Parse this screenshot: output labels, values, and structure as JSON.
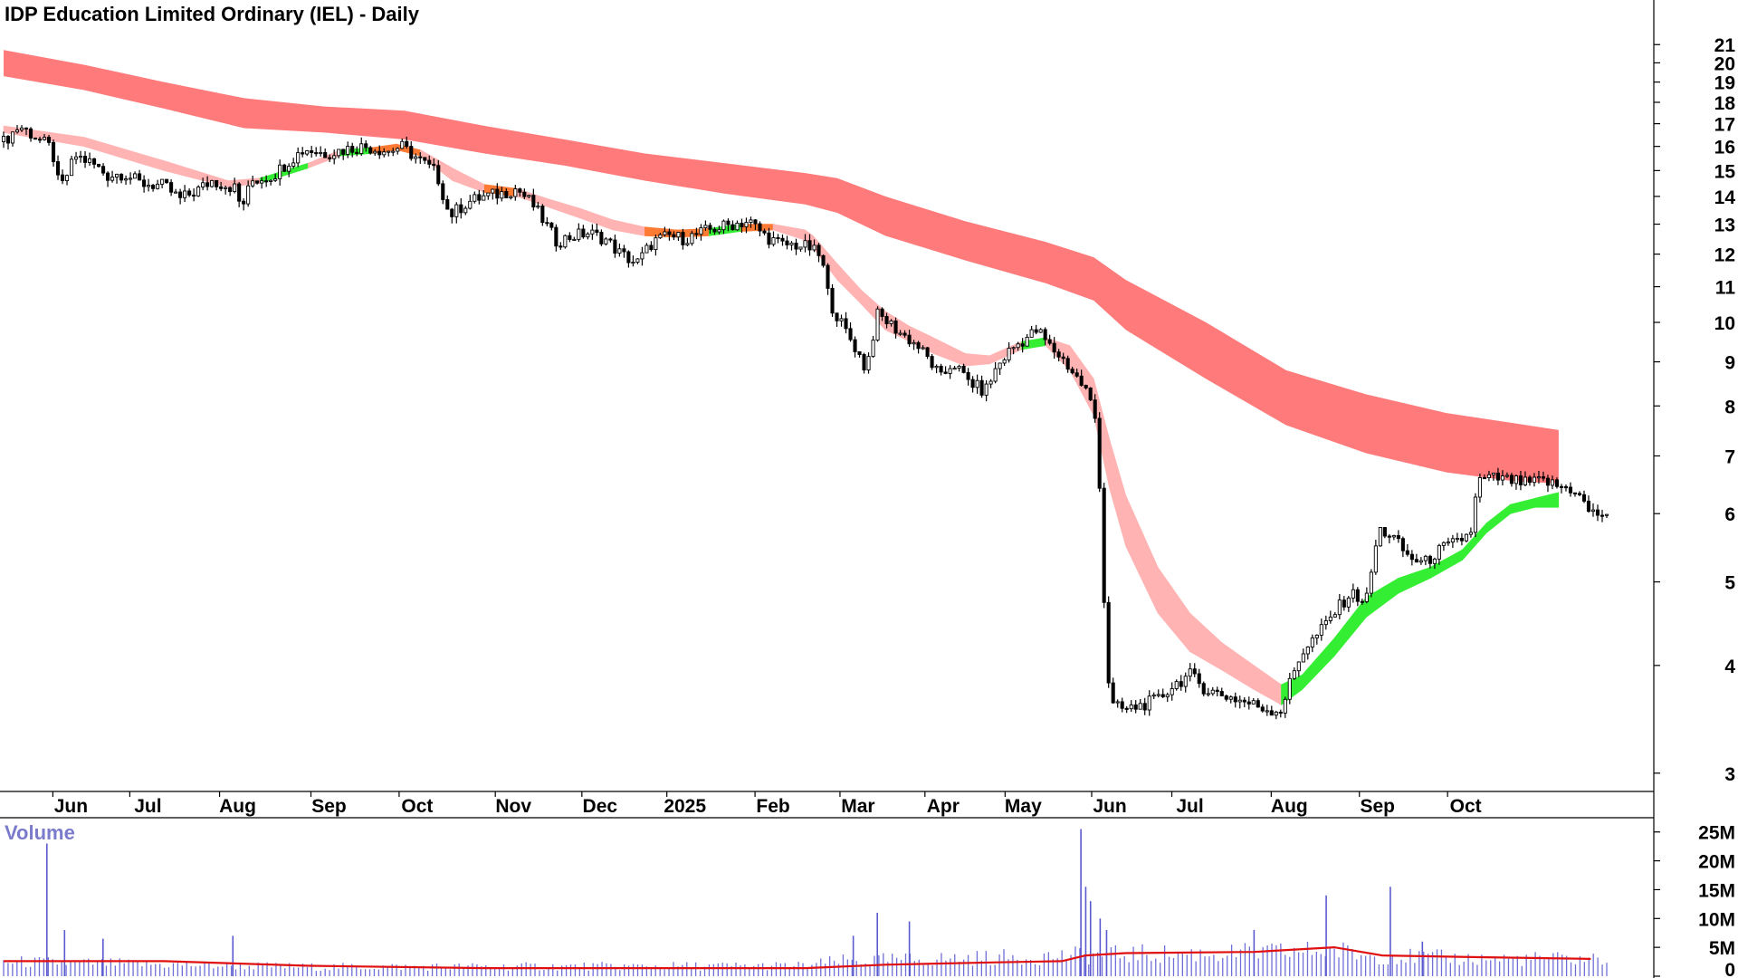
{
  "chart_data": {
    "type": "candlestick",
    "title": "IDP Education Limited Ordinary (IEL) - Daily",
    "y_scale": "log",
    "ylim": [
      2.85,
      22.0
    ],
    "price_ticks": [
      "21",
      "20",
      "19",
      "18",
      "17",
      "16",
      "15",
      "14",
      "13",
      "12",
      "11",
      "10",
      "9",
      "8",
      "7",
      "6",
      "5",
      "4",
      "3"
    ],
    "x_tick_labels": [
      "Jun",
      "Jul",
      "Aug",
      "Sep",
      "Oct",
      "Nov",
      "Dec",
      "2025",
      "Feb",
      "Mar",
      "Apr",
      "May",
      "Jun",
      "Jul",
      "Aug",
      "Sep",
      "Oct"
    ],
    "x_tick_positions": [
      0.042,
      0.09,
      0.146,
      0.203,
      0.258,
      0.318,
      0.372,
      0.425,
      0.48,
      0.533,
      0.586,
      0.636,
      0.69,
      0.74,
      0.802,
      0.857,
      0.912
    ],
    "price_path": [
      [
        0.0,
        16.2
      ],
      [
        0.01,
        16.9
      ],
      [
        0.02,
        16.4
      ],
      [
        0.03,
        15.9
      ],
      [
        0.035,
        14.2
      ],
      [
        0.045,
        15.6
      ],
      [
        0.055,
        15.3
      ],
      [
        0.065,
        14.8
      ],
      [
        0.075,
        14.9
      ],
      [
        0.085,
        14.5
      ],
      [
        0.1,
        14.4
      ],
      [
        0.11,
        13.9
      ],
      [
        0.12,
        14.2
      ],
      [
        0.13,
        14.6
      ],
      [
        0.145,
        14.3
      ],
      [
        0.148,
        13.5
      ],
      [
        0.155,
        14.6
      ],
      [
        0.168,
        14.8
      ],
      [
        0.178,
        15.4
      ],
      [
        0.188,
        15.9
      ],
      [
        0.2,
        15.7
      ],
      [
        0.215,
        15.9
      ],
      [
        0.225,
        16.0
      ],
      [
        0.24,
        15.8
      ],
      [
        0.248,
        16.0
      ],
      [
        0.26,
        15.4
      ],
      [
        0.27,
        14.9
      ],
      [
        0.278,
        13.3
      ],
      [
        0.29,
        13.8
      ],
      [
        0.3,
        14.0
      ],
      [
        0.31,
        14.1
      ],
      [
        0.32,
        14.3
      ],
      [
        0.33,
        13.7
      ],
      [
        0.345,
        12.4
      ],
      [
        0.355,
        12.6
      ],
      [
        0.365,
        12.7
      ],
      [
        0.375,
        12.5
      ],
      [
        0.385,
        12.0
      ],
      [
        0.395,
        11.7
      ],
      [
        0.405,
        12.4
      ],
      [
        0.415,
        12.6
      ],
      [
        0.425,
        12.5
      ],
      [
        0.44,
        12.8
      ],
      [
        0.455,
        13.0
      ],
      [
        0.465,
        13.1
      ],
      [
        0.475,
        12.6
      ],
      [
        0.485,
        12.3
      ],
      [
        0.495,
        12.3
      ],
      [
        0.503,
        12.2
      ],
      [
        0.51,
        11.9
      ],
      [
        0.515,
        10.6
      ],
      [
        0.522,
        10.0
      ],
      [
        0.532,
        9.3
      ],
      [
        0.538,
        8.8
      ],
      [
        0.545,
        10.2
      ],
      [
        0.552,
        10.0
      ],
      [
        0.56,
        9.7
      ],
      [
        0.57,
        9.4
      ],
      [
        0.578,
        9.0
      ],
      [
        0.585,
        8.6
      ],
      [
        0.592,
        9.0
      ],
      [
        0.6,
        8.6
      ],
      [
        0.612,
        8.3
      ],
      [
        0.62,
        8.9
      ],
      [
        0.628,
        9.3
      ],
      [
        0.638,
        9.6
      ],
      [
        0.645,
        9.8
      ],
      [
        0.652,
        9.4
      ],
      [
        0.66,
        9.1
      ],
      [
        0.67,
        8.6
      ],
      [
        0.676,
        8.3
      ],
      [
        0.682,
        7.6
      ],
      [
        0.686,
        4.9
      ],
      [
        0.69,
        3.6
      ],
      [
        0.7,
        3.55
      ],
      [
        0.71,
        3.6
      ],
      [
        0.72,
        3.65
      ],
      [
        0.73,
        3.8
      ],
      [
        0.74,
        3.9
      ],
      [
        0.75,
        3.75
      ],
      [
        0.76,
        3.7
      ],
      [
        0.77,
        3.65
      ],
      [
        0.78,
        3.6
      ],
      [
        0.79,
        3.55
      ],
      [
        0.797,
        3.55
      ],
      [
        0.803,
        3.85
      ],
      [
        0.81,
        4.15
      ],
      [
        0.82,
        4.35
      ],
      [
        0.83,
        4.6
      ],
      [
        0.84,
        4.85
      ],
      [
        0.85,
        4.75
      ],
      [
        0.858,
        5.75
      ],
      [
        0.866,
        5.65
      ],
      [
        0.876,
        5.35
      ],
      [
        0.886,
        5.25
      ],
      [
        0.896,
        5.45
      ],
      [
        0.906,
        5.55
      ],
      [
        0.915,
        5.7
      ],
      [
        0.92,
        6.55
      ],
      [
        0.93,
        6.6
      ],
      [
        0.94,
        6.55
      ],
      [
        0.95,
        6.5
      ],
      [
        0.96,
        6.55
      ],
      [
        0.97,
        6.45
      ],
      [
        0.98,
        6.4
      ],
      [
        0.99,
        6.0
      ]
    ],
    "short_ma_band": [
      [
        0.0,
        16.6,
        16.9
      ],
      [
        0.05,
        16.0,
        16.4
      ],
      [
        0.1,
        15.0,
        15.4
      ],
      [
        0.14,
        14.35,
        14.6
      ],
      [
        0.16,
        14.5,
        14.7
      ],
      [
        0.19,
        15.1,
        15.3
      ],
      [
        0.21,
        15.6,
        15.85
      ],
      [
        0.23,
        15.7,
        15.95
      ],
      [
        0.245,
        15.85,
        16.1
      ],
      [
        0.26,
        15.6,
        15.85
      ],
      [
        0.28,
        14.6,
        15.1
      ],
      [
        0.3,
        14.15,
        14.45
      ],
      [
        0.32,
        14.0,
        14.3
      ],
      [
        0.34,
        13.6,
        13.9
      ],
      [
        0.36,
        13.2,
        13.55
      ],
      [
        0.38,
        12.8,
        13.15
      ],
      [
        0.4,
        12.6,
        12.9
      ],
      [
        0.42,
        12.55,
        12.8
      ],
      [
        0.44,
        12.6,
        12.85
      ],
      [
        0.46,
        12.75,
        13.0
      ],
      [
        0.48,
        12.8,
        13.0
      ],
      [
        0.5,
        12.45,
        12.8
      ],
      [
        0.505,
        12.2,
        12.6
      ],
      [
        0.52,
        11.2,
        11.7
      ],
      [
        0.535,
        10.5,
        10.9
      ],
      [
        0.55,
        9.8,
        10.3
      ],
      [
        0.565,
        9.5,
        9.9
      ],
      [
        0.58,
        9.2,
        9.6
      ],
      [
        0.6,
        8.9,
        9.2
      ],
      [
        0.615,
        8.95,
        9.15
      ],
      [
        0.635,
        9.3,
        9.5
      ],
      [
        0.65,
        9.4,
        9.6
      ],
      [
        0.665,
        8.8,
        9.4
      ],
      [
        0.68,
        7.8,
        8.6
      ],
      [
        0.69,
        6.4,
        7.3
      ],
      [
        0.7,
        5.5,
        6.3
      ],
      [
        0.72,
        4.6,
        5.2
      ],
      [
        0.74,
        4.15,
        4.6
      ],
      [
        0.76,
        3.95,
        4.25
      ],
      [
        0.78,
        3.75,
        4.0
      ],
      [
        0.797,
        3.6,
        3.8
      ],
      [
        0.81,
        3.75,
        3.9
      ],
      [
        0.83,
        4.1,
        4.3
      ],
      [
        0.85,
        4.55,
        4.8
      ],
      [
        0.87,
        4.85,
        5.05
      ],
      [
        0.89,
        5.05,
        5.2
      ],
      [
        0.91,
        5.3,
        5.45
      ],
      [
        0.925,
        5.7,
        5.85
      ],
      [
        0.94,
        6.0,
        6.15
      ],
      [
        0.955,
        6.1,
        6.25
      ],
      [
        0.97,
        6.1,
        6.35
      ]
    ],
    "long_ma_band": [
      [
        0.0,
        19.3,
        20.7
      ],
      [
        0.05,
        18.6,
        19.9
      ],
      [
        0.1,
        17.7,
        19.0
      ],
      [
        0.15,
        16.8,
        18.2
      ],
      [
        0.2,
        16.6,
        17.8
      ],
      [
        0.25,
        16.3,
        17.6
      ],
      [
        0.3,
        15.7,
        16.9
      ],
      [
        0.35,
        15.2,
        16.3
      ],
      [
        0.4,
        14.6,
        15.7
      ],
      [
        0.45,
        14.1,
        15.3
      ],
      [
        0.5,
        13.7,
        14.9
      ],
      [
        0.52,
        13.4,
        14.7
      ],
      [
        0.55,
        12.6,
        14.0
      ],
      [
        0.6,
        11.8,
        13.1
      ],
      [
        0.65,
        11.1,
        12.4
      ],
      [
        0.68,
        10.6,
        11.9
      ],
      [
        0.7,
        9.8,
        11.2
      ],
      [
        0.75,
        8.6,
        10.0
      ],
      [
        0.8,
        7.6,
        8.8
      ],
      [
        0.85,
        7.05,
        8.25
      ],
      [
        0.9,
        6.7,
        7.85
      ],
      [
        0.94,
        6.55,
        7.65
      ],
      [
        0.97,
        6.5,
        7.5
      ]
    ],
    "volume": {
      "label": "Volume",
      "ticks": [
        "25M",
        "20M",
        "15M",
        "10M",
        "5M",
        "0"
      ],
      "ylim": [
        0,
        27
      ],
      "spikes": [
        [
          0.027,
          23
        ],
        [
          0.038,
          8
        ],
        [
          0.062,
          6.5
        ],
        [
          0.143,
          7
        ],
        [
          0.53,
          7
        ],
        [
          0.545,
          11
        ],
        [
          0.565,
          9.5
        ],
        [
          0.672,
          25.5
        ],
        [
          0.675,
          15.5
        ],
        [
          0.678,
          13
        ],
        [
          0.684,
          10
        ],
        [
          0.688,
          8
        ],
        [
          0.78,
          8
        ],
        [
          0.825,
          14
        ],
        [
          0.865,
          15.5
        ],
        [
          0.885,
          6
        ]
      ],
      "base_ranges": [
        [
          0.0,
          2.5
        ],
        [
          0.19,
          1.6
        ],
        [
          0.5,
          1.8
        ],
        [
          0.52,
          2.6
        ],
        [
          0.66,
          3.5
        ],
        [
          0.7,
          3.8
        ],
        [
          0.78,
          4.0
        ],
        [
          0.83,
          4.5
        ],
        [
          0.85,
          3.6
        ],
        [
          0.92,
          3.0
        ],
        [
          0.99,
          3.0
        ]
      ],
      "average": [
        [
          0.0,
          2.6
        ],
        [
          0.1,
          2.6
        ],
        [
          0.19,
          1.8
        ],
        [
          0.3,
          1.4
        ],
        [
          0.5,
          1.4
        ],
        [
          0.55,
          2.0
        ],
        [
          0.62,
          2.4
        ],
        [
          0.66,
          2.6
        ],
        [
          0.675,
          3.6
        ],
        [
          0.7,
          4.0
        ],
        [
          0.78,
          4.2
        ],
        [
          0.83,
          5.0
        ],
        [
          0.86,
          3.6
        ],
        [
          0.92,
          3.3
        ],
        [
          0.99,
          3.0
        ]
      ]
    }
  }
}
